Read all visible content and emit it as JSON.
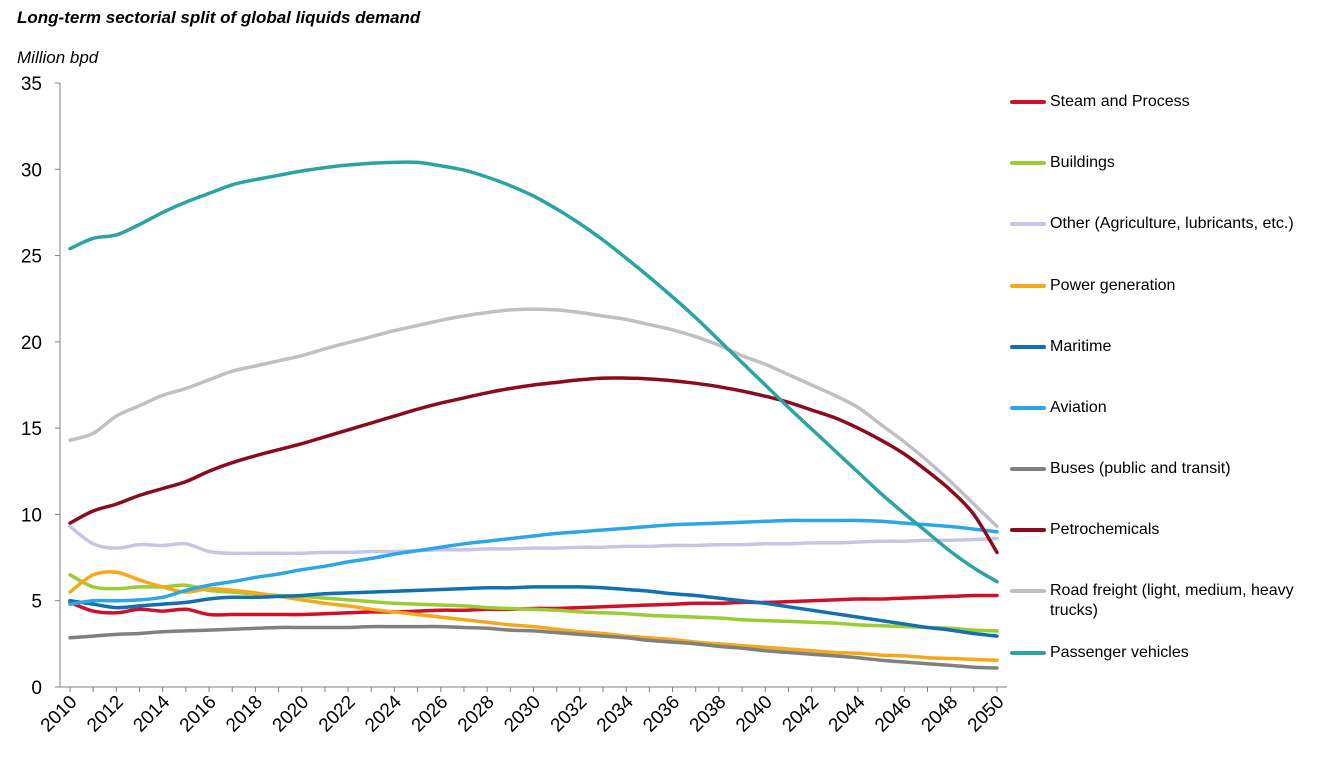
{
  "chart_data": {
    "type": "line",
    "title": "Long-term sectorial split of global liquids demand",
    "ylabel": "Million bpd",
    "xlabel": "",
    "ylim": [
      0,
      35
    ],
    "xlim": [
      2010,
      2050
    ],
    "y_ticks": [
      "0",
      "5",
      "10",
      "15",
      "20",
      "25",
      "30",
      "35"
    ],
    "x_ticks": [
      "2010",
      "2012",
      "2014",
      "2016",
      "2018",
      "2020",
      "2022",
      "2024",
      "2026",
      "2028",
      "2030",
      "2032",
      "2034",
      "2036",
      "2038",
      "2040",
      "2042",
      "2044",
      "2046",
      "2048",
      "2050"
    ],
    "grid": false,
    "legend_position": "right",
    "x": [
      2010,
      2011,
      2012,
      2013,
      2014,
      2015,
      2016,
      2017,
      2018,
      2019,
      2020,
      2021,
      2022,
      2023,
      2024,
      2025,
      2026,
      2027,
      2028,
      2029,
      2030,
      2031,
      2032,
      2033,
      2034,
      2035,
      2036,
      2037,
      2038,
      2039,
      2040,
      2041,
      2042,
      2043,
      2044,
      2045,
      2046,
      2047,
      2048,
      2049,
      2050
    ],
    "series": [
      {
        "name": "Steam and Process",
        "color": "#d0102a",
        "values": [
          4.9,
          4.4,
          4.3,
          4.5,
          4.4,
          4.5,
          4.2,
          4.2,
          4.2,
          4.2,
          4.2,
          4.25,
          4.3,
          4.35,
          4.35,
          4.4,
          4.45,
          4.45,
          4.5,
          4.5,
          4.55,
          4.55,
          4.6,
          4.65,
          4.7,
          4.75,
          4.8,
          4.85,
          4.85,
          4.9,
          4.9,
          4.95,
          5.0,
          5.05,
          5.1,
          5.1,
          5.15,
          5.2,
          5.25,
          5.3,
          5.3
        ]
      },
      {
        "name": "Buildings",
        "color": "#9acd32",
        "values": [
          6.5,
          5.8,
          5.7,
          5.8,
          5.8,
          5.9,
          5.6,
          5.5,
          5.4,
          5.3,
          5.25,
          5.15,
          5.05,
          4.95,
          4.85,
          4.8,
          4.75,
          4.7,
          4.6,
          4.55,
          4.5,
          4.45,
          4.35,
          4.3,
          4.25,
          4.15,
          4.1,
          4.05,
          4.0,
          3.9,
          3.85,
          3.8,
          3.75,
          3.7,
          3.6,
          3.55,
          3.5,
          3.45,
          3.4,
          3.3,
          3.25
        ]
      },
      {
        "name": "Other (Agriculture, lubricants, etc.)",
        "color": "#c9c3e6",
        "values": [
          9.3,
          8.3,
          8.05,
          8.25,
          8.2,
          8.3,
          7.85,
          7.75,
          7.75,
          7.75,
          7.75,
          7.8,
          7.8,
          7.85,
          7.85,
          7.9,
          7.95,
          7.95,
          8.0,
          8.0,
          8.05,
          8.05,
          8.1,
          8.1,
          8.15,
          8.15,
          8.2,
          8.2,
          8.25,
          8.25,
          8.3,
          8.3,
          8.35,
          8.35,
          8.4,
          8.45,
          8.45,
          8.5,
          8.5,
          8.55,
          8.6
        ]
      },
      {
        "name": "Power generation",
        "color": "#f5a81c",
        "values": [
          5.5,
          6.5,
          6.65,
          6.2,
          5.8,
          5.5,
          5.7,
          5.6,
          5.45,
          5.25,
          5.05,
          4.85,
          4.7,
          4.5,
          4.35,
          4.2,
          4.05,
          3.9,
          3.75,
          3.6,
          3.5,
          3.35,
          3.2,
          3.1,
          2.95,
          2.85,
          2.75,
          2.6,
          2.5,
          2.4,
          2.3,
          2.2,
          2.1,
          2.0,
          1.95,
          1.85,
          1.8,
          1.7,
          1.65,
          1.6,
          1.55
        ]
      },
      {
        "name": "Maritime",
        "color": "#1170b0",
        "values": [
          5.0,
          4.8,
          4.6,
          4.7,
          4.8,
          4.9,
          5.1,
          5.2,
          5.2,
          5.25,
          5.3,
          5.4,
          5.45,
          5.5,
          5.55,
          5.6,
          5.65,
          5.7,
          5.75,
          5.75,
          5.8,
          5.8,
          5.8,
          5.75,
          5.65,
          5.55,
          5.4,
          5.3,
          5.15,
          5.0,
          4.85,
          4.65,
          4.45,
          4.25,
          4.05,
          3.85,
          3.65,
          3.45,
          3.3,
          3.1,
          2.95
        ]
      },
      {
        "name": "Aviation",
        "color": "#2ba6e8",
        "values": [
          4.8,
          5.0,
          5.0,
          5.05,
          5.2,
          5.6,
          5.9,
          6.1,
          6.35,
          6.55,
          6.8,
          7.0,
          7.25,
          7.45,
          7.7,
          7.9,
          8.1,
          8.3,
          8.45,
          8.6,
          8.75,
          8.9,
          9.0,
          9.1,
          9.2,
          9.3,
          9.4,
          9.45,
          9.5,
          9.55,
          9.6,
          9.65,
          9.65,
          9.65,
          9.65,
          9.6,
          9.5,
          9.4,
          9.3,
          9.15,
          9.0
        ]
      },
      {
        "name": "Buses (public and transit)",
        "color": "#808080",
        "values": [
          2.85,
          2.95,
          3.05,
          3.1,
          3.2,
          3.25,
          3.3,
          3.35,
          3.4,
          3.45,
          3.45,
          3.45,
          3.45,
          3.5,
          3.5,
          3.5,
          3.5,
          3.45,
          3.4,
          3.3,
          3.25,
          3.15,
          3.05,
          2.95,
          2.85,
          2.7,
          2.6,
          2.5,
          2.35,
          2.25,
          2.1,
          2.0,
          1.9,
          1.8,
          1.7,
          1.55,
          1.45,
          1.35,
          1.25,
          1.15,
          1.1
        ]
      },
      {
        "name": "Petrochemicals",
        "color": "#8b0a1e",
        "values": [
          9.5,
          10.2,
          10.6,
          11.1,
          11.5,
          11.9,
          12.5,
          13.0,
          13.4,
          13.75,
          14.1,
          14.5,
          14.9,
          15.3,
          15.7,
          16.1,
          16.45,
          16.75,
          17.05,
          17.3,
          17.5,
          17.65,
          17.8,
          17.9,
          17.9,
          17.85,
          17.75,
          17.6,
          17.4,
          17.15,
          16.85,
          16.5,
          16.05,
          15.6,
          15.0,
          14.3,
          13.5,
          12.5,
          11.4,
          10.0,
          7.8
        ]
      },
      {
        "name": "Road freight (light, medium, heavy trucks)",
        "color": "#c0c0c0",
        "values": [
          14.3,
          14.7,
          15.7,
          16.3,
          16.9,
          17.3,
          17.8,
          18.3,
          18.6,
          18.9,
          19.2,
          19.6,
          19.95,
          20.3,
          20.65,
          20.95,
          21.25,
          21.5,
          21.7,
          21.85,
          21.9,
          21.85,
          21.7,
          21.5,
          21.3,
          21.0,
          20.7,
          20.3,
          19.8,
          19.2,
          18.7,
          18.1,
          17.5,
          16.9,
          16.2,
          15.2,
          14.2,
          13.1,
          11.9,
          10.6,
          9.3
        ]
      },
      {
        "name": "Passenger vehicles",
        "color": "#2aa3a3",
        "values": [
          25.4,
          26.0,
          26.2,
          26.8,
          27.5,
          28.1,
          28.6,
          29.1,
          29.4,
          29.65,
          29.9,
          30.1,
          30.25,
          30.35,
          30.4,
          30.4,
          30.2,
          29.95,
          29.55,
          29.05,
          28.45,
          27.7,
          26.85,
          25.9,
          24.85,
          23.75,
          22.6,
          21.4,
          20.1,
          18.8,
          17.5,
          16.2,
          14.95,
          13.7,
          12.45,
          11.2,
          10.05,
          8.95,
          7.85,
          6.9,
          6.1
        ]
      }
    ]
  }
}
